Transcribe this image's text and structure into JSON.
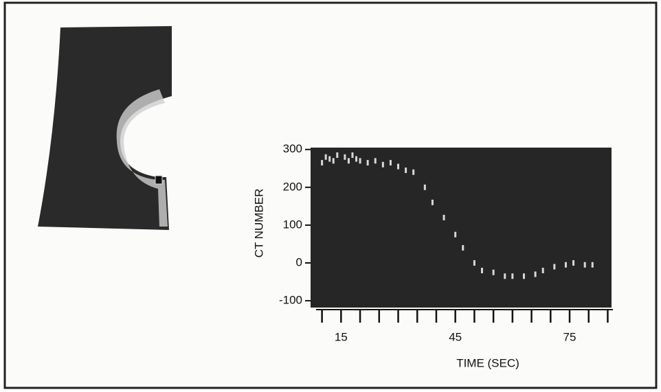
{
  "chart_data": {
    "type": "scatter",
    "xlabel": "TIME (SEC)",
    "ylabel": "CT NUMBER",
    "x": [
      10,
      11,
      12,
      13,
      14,
      16,
      17,
      18,
      19,
      20,
      22,
      24,
      26,
      28,
      30,
      32,
      34,
      37,
      39,
      42,
      45,
      47,
      50,
      52,
      55,
      58,
      60,
      63,
      66,
      68,
      71,
      74,
      76,
      79,
      81
    ],
    "values": [
      265,
      280,
      275,
      270,
      285,
      280,
      270,
      285,
      275,
      270,
      265,
      270,
      260,
      265,
      255,
      245,
      240,
      200,
      160,
      120,
      75,
      40,
      0,
      -20,
      -25,
      -35,
      -35,
      -35,
      -30,
      -20,
      -10,
      -5,
      0,
      -5,
      -5
    ],
    "color": "#d8d8d8",
    "plot_background": "#262626",
    "xlim": [
      7,
      86
    ],
    "xticks": [
      15,
      45,
      75
    ],
    "minor_xticks": [
      10,
      15,
      20,
      25,
      30,
      35,
      40,
      45,
      50,
      55,
      60,
      65,
      70,
      75,
      80,
      85
    ],
    "ylim": [
      -118,
      305
    ],
    "yticks": [
      -100,
      0,
      100,
      200,
      300
    ],
    "grid": false
  }
}
